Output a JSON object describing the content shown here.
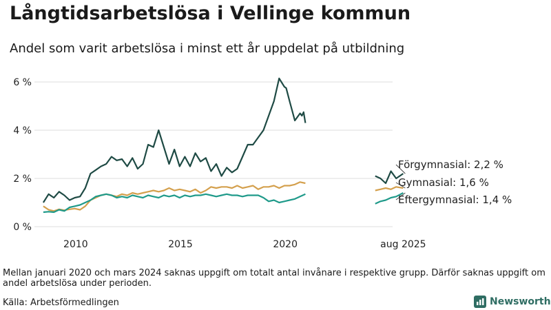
{
  "title": "Långtidsarbetslösa i Vellinge kommun",
  "subtitle": "Andel som varit arbetslösa i minst ett år uppdelat på utbildning",
  "note": "Mellan januari 2020 och mars 2024 saknas uppgift om totalt antal invånare i respektive grupp. Därför saknas uppgift om andel arbetslösa under perioden.",
  "source": "Källa: Arbetsförmedlingen",
  "brand": "Newsworthy",
  "chart_data": {
    "type": "line",
    "title": "Långtidsarbetslösa i Vellinge kommun",
    "subtitle": "Andel som varit arbetslösa i minst ett år uppdelat på utbildning",
    "xlabel": "",
    "ylabel": "",
    "ylim": [
      0,
      6.6
    ],
    "yticks": [
      0,
      2,
      4,
      6
    ],
    "ytick_labels": [
      "0 %",
      "2 %",
      "4 %",
      "6 %"
    ],
    "xtick_labels": [
      "2010",
      "2015",
      "2020",
      "aug 2025"
    ],
    "grid": true,
    "legend": "end-labels",
    "series": [
      {
        "name": "Förgymnasial",
        "end_label": "Förgymnasial: 2,2 %",
        "color": "#1e4a44",
        "points": [
          [
            "2008-06",
            1.0
          ],
          [
            "2008-09",
            1.35
          ],
          [
            "2008-12",
            1.2
          ],
          [
            "2009-03",
            1.45
          ],
          [
            "2009-06",
            1.3
          ],
          [
            "2009-09",
            1.1
          ],
          [
            "2009-12",
            1.2
          ],
          [
            "2010-03",
            1.25
          ],
          [
            "2010-06",
            1.6
          ],
          [
            "2010-09",
            2.2
          ],
          [
            "2010-12",
            2.35
          ],
          [
            "2011-03",
            2.5
          ],
          [
            "2011-06",
            2.6
          ],
          [
            "2011-09",
            2.9
          ],
          [
            "2011-12",
            2.75
          ],
          [
            "2012-03",
            2.8
          ],
          [
            "2012-06",
            2.5
          ],
          [
            "2012-09",
            2.85
          ],
          [
            "2012-12",
            2.4
          ],
          [
            "2013-03",
            2.6
          ],
          [
            "2013-06",
            3.4
          ],
          [
            "2013-09",
            3.3
          ],
          [
            "2013-12",
            4.0
          ],
          [
            "2014-03",
            3.3
          ],
          [
            "2014-06",
            2.6
          ],
          [
            "2014-09",
            3.2
          ],
          [
            "2014-12",
            2.5
          ],
          [
            "2015-03",
            2.9
          ],
          [
            "2015-06",
            2.5
          ],
          [
            "2015-09",
            3.05
          ],
          [
            "2015-12",
            2.7
          ],
          [
            "2016-03",
            2.85
          ],
          [
            "2016-06",
            2.3
          ],
          [
            "2016-09",
            2.6
          ],
          [
            "2016-12",
            2.1
          ],
          [
            "2017-03",
            2.45
          ],
          [
            "2017-06",
            2.25
          ],
          [
            "2017-09",
            2.4
          ],
          [
            "2017-12",
            2.9
          ],
          [
            "2018-03",
            3.4
          ],
          [
            "2018-06",
            3.4
          ],
          [
            "2018-09",
            3.7
          ],
          [
            "2018-12",
            4.0
          ],
          [
            "2019-03",
            4.6
          ],
          [
            "2019-06",
            5.2
          ],
          [
            "2019-09",
            6.15
          ],
          [
            "2019-12",
            5.8
          ],
          [
            "2020-01",
            5.75
          ],
          [
            "2020-03",
            5.2
          ],
          [
            "2020-06",
            4.4
          ],
          [
            "2020-09",
            4.7
          ],
          [
            "2020-10",
            4.6
          ],
          [
            "2020-11",
            4.75
          ],
          [
            "2020-12",
            4.3
          ]
        ],
        "recent": [
          [
            "2024-04",
            2.1
          ],
          [
            "2024-07",
            2.0
          ],
          [
            "2024-10",
            1.8
          ],
          [
            "2025-01",
            2.3
          ],
          [
            "2025-04",
            2.0
          ],
          [
            "2025-08",
            2.2
          ]
        ]
      },
      {
        "name": "Gymnasial",
        "end_label": "Gymnasial: 1,6 %",
        "color": "#d4a04d",
        "points": [
          [
            "2008-06",
            0.85
          ],
          [
            "2008-09",
            0.7
          ],
          [
            "2008-12",
            0.65
          ],
          [
            "2009-03",
            0.72
          ],
          [
            "2009-06",
            0.68
          ],
          [
            "2009-09",
            0.72
          ],
          [
            "2009-12",
            0.75
          ],
          [
            "2010-03",
            0.7
          ],
          [
            "2010-06",
            0.85
          ],
          [
            "2010-09",
            1.1
          ],
          [
            "2010-12",
            1.2
          ],
          [
            "2011-03",
            1.3
          ],
          [
            "2011-06",
            1.35
          ],
          [
            "2011-09",
            1.3
          ],
          [
            "2011-12",
            1.25
          ],
          [
            "2012-03",
            1.35
          ],
          [
            "2012-06",
            1.3
          ],
          [
            "2012-09",
            1.4
          ],
          [
            "2012-12",
            1.35
          ],
          [
            "2013-03",
            1.4
          ],
          [
            "2013-06",
            1.45
          ],
          [
            "2013-09",
            1.5
          ],
          [
            "2013-12",
            1.45
          ],
          [
            "2014-03",
            1.5
          ],
          [
            "2014-06",
            1.6
          ],
          [
            "2014-09",
            1.5
          ],
          [
            "2014-12",
            1.55
          ],
          [
            "2015-03",
            1.5
          ],
          [
            "2015-06",
            1.45
          ],
          [
            "2015-09",
            1.55
          ],
          [
            "2015-12",
            1.4
          ],
          [
            "2016-03",
            1.5
          ],
          [
            "2016-06",
            1.65
          ],
          [
            "2016-09",
            1.6
          ],
          [
            "2016-12",
            1.65
          ],
          [
            "2017-03",
            1.65
          ],
          [
            "2017-06",
            1.6
          ],
          [
            "2017-09",
            1.7
          ],
          [
            "2017-12",
            1.6
          ],
          [
            "2018-03",
            1.65
          ],
          [
            "2018-06",
            1.7
          ],
          [
            "2018-09",
            1.55
          ],
          [
            "2018-12",
            1.65
          ],
          [
            "2019-03",
            1.65
          ],
          [
            "2019-06",
            1.7
          ],
          [
            "2019-09",
            1.6
          ],
          [
            "2019-12",
            1.7
          ],
          [
            "2020-03",
            1.7
          ],
          [
            "2020-06",
            1.75
          ],
          [
            "2020-09",
            1.85
          ],
          [
            "2020-12",
            1.8
          ]
        ],
        "recent": [
          [
            "2024-04",
            1.5
          ],
          [
            "2024-07",
            1.55
          ],
          [
            "2024-10",
            1.6
          ],
          [
            "2025-01",
            1.55
          ],
          [
            "2025-04",
            1.65
          ],
          [
            "2025-08",
            1.6
          ]
        ]
      },
      {
        "name": "Eftergymnasial",
        "end_label": "Eftergymnasial: 1,4 %",
        "color": "#1f9a8a",
        "points": [
          [
            "2008-06",
            0.6
          ],
          [
            "2008-09",
            0.62
          ],
          [
            "2008-12",
            0.6
          ],
          [
            "2009-03",
            0.7
          ],
          [
            "2009-06",
            0.65
          ],
          [
            "2009-09",
            0.8
          ],
          [
            "2009-12",
            0.85
          ],
          [
            "2010-03",
            0.9
          ],
          [
            "2010-06",
            1.0
          ],
          [
            "2010-09",
            1.1
          ],
          [
            "2010-12",
            1.25
          ],
          [
            "2011-03",
            1.3
          ],
          [
            "2011-06",
            1.35
          ],
          [
            "2011-09",
            1.3
          ],
          [
            "2011-12",
            1.2
          ],
          [
            "2012-03",
            1.25
          ],
          [
            "2012-06",
            1.2
          ],
          [
            "2012-09",
            1.3
          ],
          [
            "2012-12",
            1.25
          ],
          [
            "2013-03",
            1.2
          ],
          [
            "2013-06",
            1.3
          ],
          [
            "2013-09",
            1.25
          ],
          [
            "2013-12",
            1.2
          ],
          [
            "2014-03",
            1.3
          ],
          [
            "2014-06",
            1.25
          ],
          [
            "2014-09",
            1.3
          ],
          [
            "2014-12",
            1.2
          ],
          [
            "2015-03",
            1.3
          ],
          [
            "2015-06",
            1.25
          ],
          [
            "2015-09",
            1.3
          ],
          [
            "2015-12",
            1.3
          ],
          [
            "2016-03",
            1.35
          ],
          [
            "2016-06",
            1.3
          ],
          [
            "2016-09",
            1.25
          ],
          [
            "2016-12",
            1.3
          ],
          [
            "2017-03",
            1.35
          ],
          [
            "2017-06",
            1.3
          ],
          [
            "2017-09",
            1.3
          ],
          [
            "2017-12",
            1.25
          ],
          [
            "2018-03",
            1.3
          ],
          [
            "2018-06",
            1.3
          ],
          [
            "2018-09",
            1.3
          ],
          [
            "2018-12",
            1.2
          ],
          [
            "2019-03",
            1.05
          ],
          [
            "2019-06",
            1.1
          ],
          [
            "2019-09",
            1.0
          ],
          [
            "2019-12",
            1.05
          ],
          [
            "2020-03",
            1.1
          ],
          [
            "2020-06",
            1.15
          ],
          [
            "2020-09",
            1.25
          ],
          [
            "2020-12",
            1.35
          ]
        ],
        "recent": [
          [
            "2024-04",
            0.95
          ],
          [
            "2024-07",
            1.05
          ],
          [
            "2024-10",
            1.1
          ],
          [
            "2025-01",
            1.2
          ],
          [
            "2025-04",
            1.25
          ],
          [
            "2025-08",
            1.4
          ]
        ]
      }
    ]
  }
}
